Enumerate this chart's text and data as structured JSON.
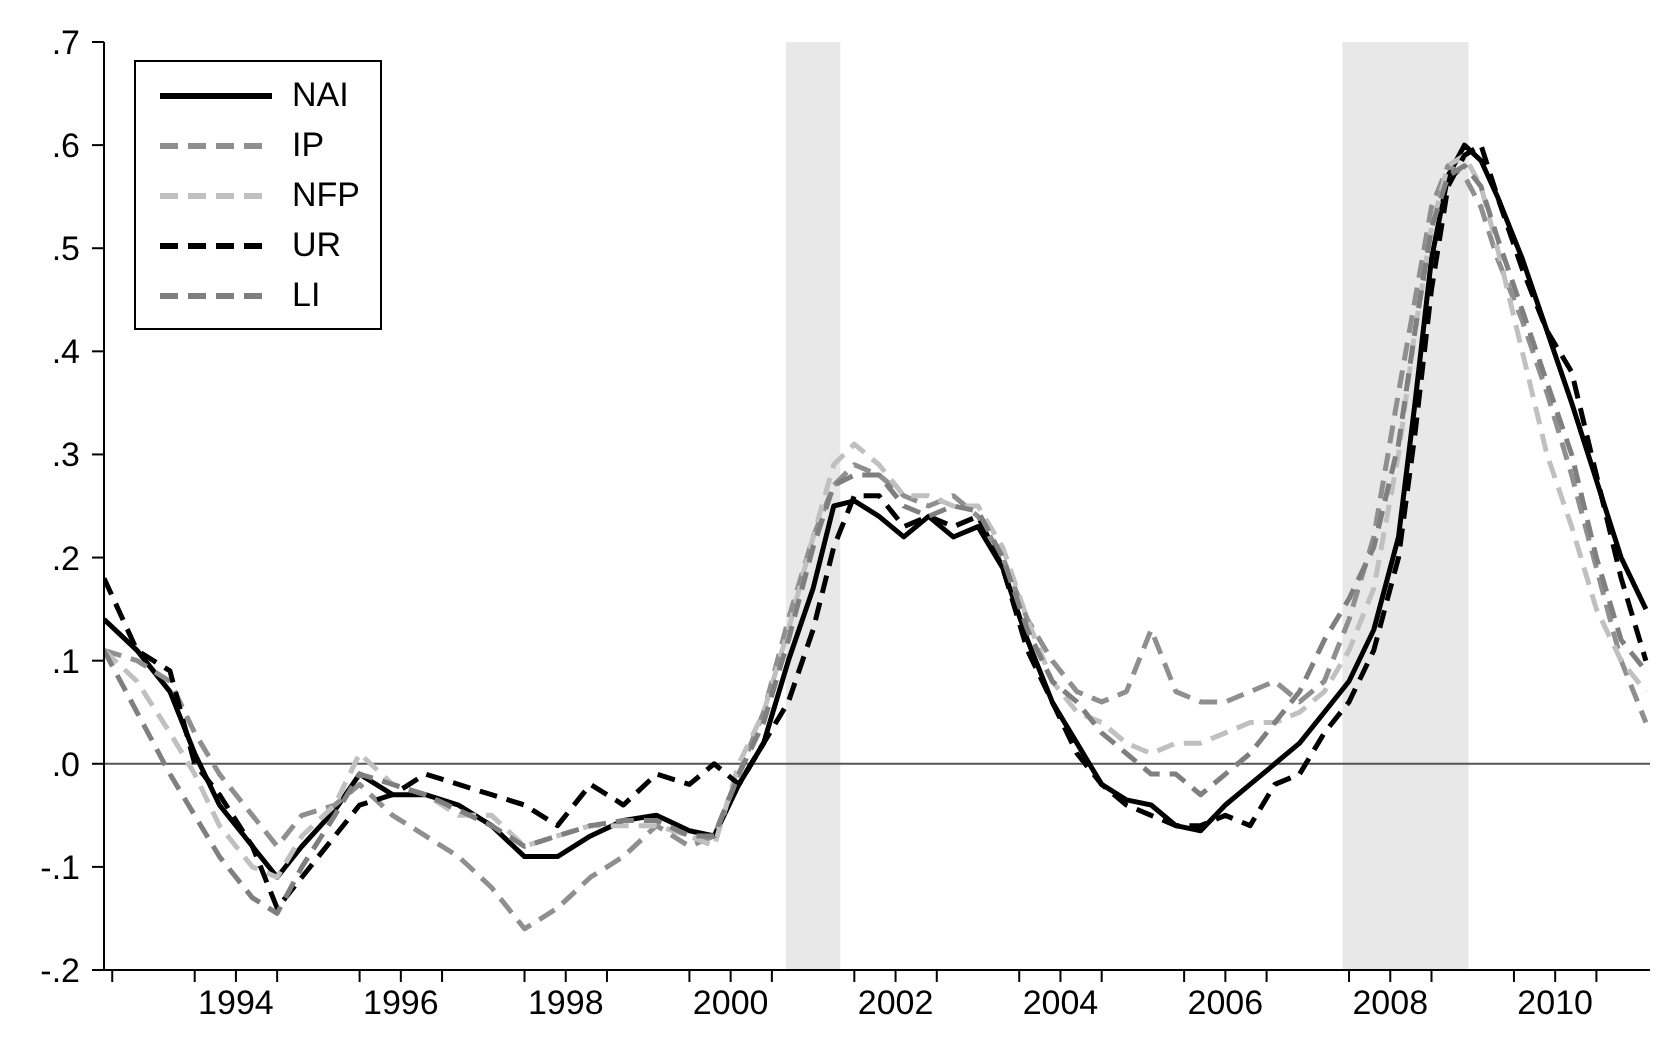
{
  "chart_data": {
    "type": "line",
    "x": [
      1992.9,
      1993.3,
      1993.7,
      1994.0,
      1994.3,
      1994.7,
      1995.0,
      1995.3,
      1995.7,
      1996.0,
      1996.4,
      1996.8,
      1997.2,
      1997.6,
      1998.0,
      1998.4,
      1998.8,
      1999.2,
      1999.6,
      2000.0,
      2000.3,
      2000.6,
      2000.9,
      2001.2,
      2001.5,
      2001.75,
      2002.0,
      2002.3,
      2002.6,
      2002.9,
      2003.2,
      2003.5,
      2003.8,
      2004.1,
      2004.4,
      2004.7,
      2005.0,
      2005.3,
      2005.6,
      2005.9,
      2006.2,
      2006.5,
      2006.8,
      2007.1,
      2007.4,
      2007.7,
      2008.0,
      2008.3,
      2008.6,
      2008.8,
      2009.0,
      2009.2,
      2009.4,
      2009.6,
      2009.8,
      2010.1,
      2010.4,
      2010.7,
      2011.0,
      2011.3,
      2011.6
    ],
    "series": [
      {
        "name": "NAI",
        "color": "#000000",
        "line_style": "solid",
        "values": [
          0.14,
          0.11,
          0.07,
          0.01,
          -0.04,
          -0.08,
          -0.11,
          -0.08,
          -0.045,
          -0.01,
          -0.03,
          -0.03,
          -0.04,
          -0.06,
          -0.09,
          -0.09,
          -0.07,
          -0.055,
          -0.05,
          -0.065,
          -0.07,
          -0.02,
          0.02,
          0.1,
          0.17,
          0.25,
          0.255,
          0.24,
          0.22,
          0.24,
          0.22,
          0.23,
          0.19,
          0.12,
          0.06,
          0.02,
          -0.02,
          -0.035,
          -0.04,
          -0.06,
          -0.065,
          -0.04,
          -0.02,
          0.0,
          0.02,
          0.05,
          0.08,
          0.13,
          0.22,
          0.35,
          0.49,
          0.57,
          0.6,
          0.585,
          0.55,
          0.49,
          0.42,
          0.35,
          0.275,
          0.2,
          0.15
        ]
      },
      {
        "name": "IP",
        "color": "#8f8f8f",
        "line_style": "dashed",
        "values": [
          0.11,
          0.1,
          0.08,
          0.03,
          -0.01,
          -0.05,
          -0.08,
          -0.05,
          -0.04,
          -0.02,
          -0.05,
          -0.07,
          -0.09,
          -0.12,
          -0.16,
          -0.14,
          -0.11,
          -0.09,
          -0.06,
          -0.08,
          -0.07,
          -0.01,
          0.05,
          0.14,
          0.22,
          0.27,
          0.29,
          0.28,
          0.26,
          0.25,
          0.26,
          0.24,
          0.2,
          0.14,
          0.1,
          0.07,
          0.06,
          0.07,
          0.13,
          0.07,
          0.06,
          0.06,
          0.07,
          0.08,
          0.06,
          0.08,
          0.14,
          0.22,
          0.36,
          0.45,
          0.54,
          0.58,
          0.57,
          0.54,
          0.49,
          0.43,
          0.36,
          0.28,
          0.19,
          0.1,
          0.04
        ]
      },
      {
        "name": "NFP",
        "color": "#c0c0c0",
        "line_style": "dashed",
        "values": [
          0.11,
          0.08,
          0.03,
          -0.01,
          -0.06,
          -0.1,
          -0.11,
          -0.07,
          -0.04,
          0.01,
          -0.02,
          -0.03,
          -0.05,
          -0.05,
          -0.08,
          -0.07,
          -0.06,
          -0.06,
          -0.06,
          -0.07,
          -0.08,
          0.0,
          0.05,
          0.13,
          0.22,
          0.29,
          0.31,
          0.29,
          0.26,
          0.26,
          0.25,
          0.25,
          0.21,
          0.14,
          0.08,
          0.05,
          0.04,
          0.02,
          0.01,
          0.02,
          0.02,
          0.03,
          0.04,
          0.04,
          0.05,
          0.07,
          0.11,
          0.17,
          0.3,
          0.42,
          0.52,
          0.58,
          0.59,
          0.56,
          0.5,
          0.4,
          0.3,
          0.23,
          0.15,
          0.1,
          0.07
        ]
      },
      {
        "name": "UR",
        "color": "#000000",
        "line_style": "dashed",
        "values": [
          0.18,
          0.11,
          0.09,
          0.0,
          -0.03,
          -0.08,
          -0.14,
          -0.11,
          -0.07,
          -0.04,
          -0.03,
          -0.01,
          -0.02,
          -0.03,
          -0.04,
          -0.06,
          -0.02,
          -0.04,
          -0.01,
          -0.02,
          0.0,
          -0.02,
          0.02,
          0.06,
          0.13,
          0.21,
          0.26,
          0.26,
          0.23,
          0.24,
          0.23,
          0.24,
          0.19,
          0.11,
          0.06,
          0.01,
          -0.02,
          -0.04,
          -0.05,
          -0.06,
          -0.06,
          -0.05,
          -0.06,
          -0.02,
          -0.01,
          0.03,
          0.06,
          0.11,
          0.2,
          0.32,
          0.46,
          0.56,
          0.59,
          0.6,
          0.55,
          0.48,
          0.42,
          0.38,
          0.28,
          0.18,
          0.1
        ]
      },
      {
        "name": "LI",
        "color": "#7f7f7f",
        "line_style": "dashed",
        "values": [
          0.11,
          0.05,
          -0.01,
          -0.05,
          -0.09,
          -0.13,
          -0.145,
          -0.1,
          -0.05,
          -0.01,
          -0.02,
          -0.03,
          -0.045,
          -0.06,
          -0.08,
          -0.07,
          -0.06,
          -0.055,
          -0.055,
          -0.07,
          -0.07,
          -0.01,
          0.04,
          0.12,
          0.21,
          0.27,
          0.28,
          0.28,
          0.25,
          0.24,
          0.25,
          0.245,
          0.2,
          0.13,
          0.08,
          0.06,
          0.03,
          0.01,
          -0.01,
          -0.01,
          -0.03,
          -0.01,
          0.01,
          0.04,
          0.07,
          0.12,
          0.16,
          0.21,
          0.31,
          0.42,
          0.52,
          0.57,
          0.58,
          0.56,
          0.51,
          0.44,
          0.37,
          0.3,
          0.2,
          0.12,
          0.09
        ]
      }
    ],
    "xlim": [
      1992.9,
      2011.65
    ],
    "xticks": [
      {
        "value": 1993,
        "label": null
      },
      {
        "value": 1994,
        "label": null
      },
      {
        "value": 1994.5,
        "label": "1994"
      },
      {
        "value": 1995,
        "label": null
      },
      {
        "value": 1996,
        "label": null
      },
      {
        "value": 1996.5,
        "label": "1996"
      },
      {
        "value": 1997,
        "label": null
      },
      {
        "value": 1998,
        "label": null
      },
      {
        "value": 1998.5,
        "label": "1998"
      },
      {
        "value": 1999,
        "label": null
      },
      {
        "value": 2000,
        "label": null
      },
      {
        "value": 2000.5,
        "label": "2000"
      },
      {
        "value": 2001,
        "label": null
      },
      {
        "value": 2002,
        "label": null
      },
      {
        "value": 2002.5,
        "label": "2002"
      },
      {
        "value": 2003,
        "label": null
      },
      {
        "value": 2004,
        "label": null
      },
      {
        "value": 2004.5,
        "label": "2004"
      },
      {
        "value": 2005,
        "label": null
      },
      {
        "value": 2006,
        "label": null
      },
      {
        "value": 2006.5,
        "label": "2006"
      },
      {
        "value": 2007,
        "label": null
      },
      {
        "value": 2008,
        "label": null
      },
      {
        "value": 2008.5,
        "label": "2008"
      },
      {
        "value": 2009,
        "label": null
      },
      {
        "value": 2010,
        "label": null
      },
      {
        "value": 2010.5,
        "label": "2010"
      },
      {
        "value": 2011,
        "label": null
      }
    ],
    "ylim": [
      -0.2,
      0.7
    ],
    "yticks": [
      {
        "value": -0.2,
        "label": "-.2"
      },
      {
        "value": -0.1,
        "label": "-.1"
      },
      {
        "value": 0,
        "label": ".0"
      },
      {
        "value": 0.1,
        "label": ".1"
      },
      {
        "value": 0.2,
        "label": ".2"
      },
      {
        "value": 0.3,
        "label": ".3"
      },
      {
        "value": 0.4,
        "label": ".4"
      },
      {
        "value": 0.5,
        "label": ".5"
      },
      {
        "value": 0.6,
        "label": ".6"
      },
      {
        "value": 0.7,
        "label": ".7"
      }
    ],
    "ref_lines": [
      {
        "axis": "y",
        "value": 0,
        "color": "#555555"
      }
    ],
    "bands": [
      {
        "axis": "x",
        "from": 2001.17,
        "to": 2001.83,
        "color": "#e8e8e8"
      },
      {
        "axis": "x",
        "from": 2007.92,
        "to": 2009.45,
        "color": "#e8e8e8"
      }
    ],
    "legend": "top left",
    "grid": false,
    "marker": "none"
  }
}
